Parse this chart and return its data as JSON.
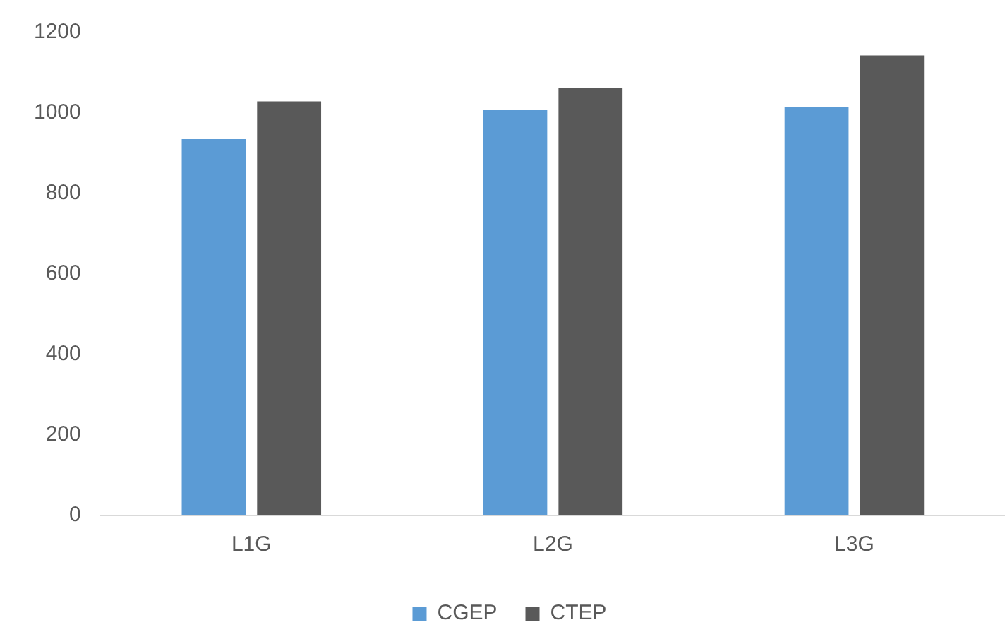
{
  "chart_data": {
    "type": "bar",
    "categories": [
      "L1G",
      "L2G",
      "L3G"
    ],
    "series": [
      {
        "name": "CGEP",
        "color": "#5b9bd5",
        "values": [
          935,
          1007,
          1015
        ]
      },
      {
        "name": "CTEP",
        "color": "#595959",
        "values": [
          1029,
          1063,
          1143
        ]
      }
    ],
    "ylim": [
      0,
      1200
    ],
    "yticks": [
      0,
      200,
      400,
      600,
      800,
      1000,
      1200
    ],
    "grid": false,
    "legend": "bottom"
  }
}
